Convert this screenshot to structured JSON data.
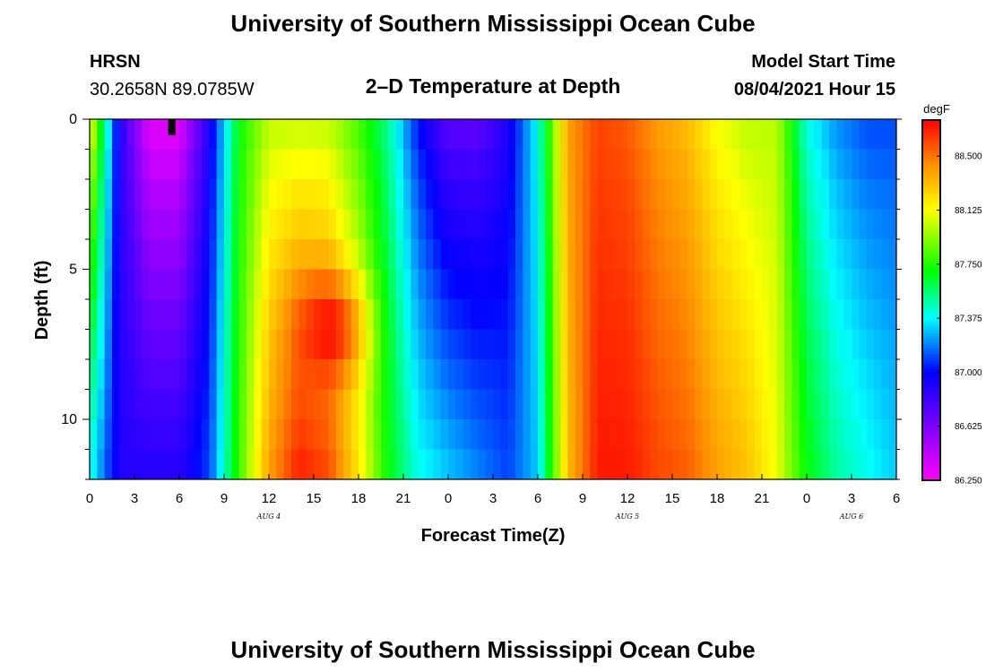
{
  "header": {
    "title": "University of Southern Mississippi Ocean Cube",
    "station": "HRSN",
    "coords": "30.2658N  89.0785W",
    "plot_title": "2–D Temperature at Depth",
    "model_start_label": "Model Start Time",
    "model_start_value": "08/04/2021 Hour 15",
    "footer_title": "University of Southern Mississippi Ocean Cube"
  },
  "chart_data": {
    "type": "heatmap",
    "title": "2–D Temperature at Depth",
    "xlabel": "Forecast Time(Z)",
    "ylabel": "Depth (ft)",
    "x_hours_range": [
      0,
      54
    ],
    "y_depth_range_ft": [
      0,
      12
    ],
    "x_tick_hours": [
      0,
      3,
      6,
      9,
      12,
      15,
      18,
      21,
      24,
      27,
      30,
      33,
      36,
      39,
      42,
      45,
      48,
      51,
      54
    ],
    "x_tick_labels": [
      "0",
      "3",
      "6",
      "9",
      "12",
      "15",
      "18",
      "21",
      "0",
      "3",
      "6",
      "9",
      "12",
      "15",
      "18",
      "21",
      "0",
      "3",
      "6"
    ],
    "y_major_ticks": [
      0,
      5,
      10
    ],
    "y_tick_labels": [
      "0",
      "5",
      "10"
    ],
    "date_labels": [
      {
        "hour": 12,
        "text": "AUG 4"
      },
      {
        "hour": 36,
        "text": "AUG 5"
      },
      {
        "hour": 51,
        "text": "AUG 6"
      }
    ],
    "colorbar": {
      "unit": "degF",
      "min": 86.25,
      "max": 88.75,
      "tick_values": [
        86.25,
        86.625,
        87.0,
        87.375,
        87.75,
        88.125,
        88.5
      ],
      "tick_labels": [
        "86.250",
        "86.625",
        "87.000",
        "87.375",
        "87.750",
        "88.125",
        "88.500"
      ]
    },
    "time_steps_hours": [
      0,
      2,
      4,
      6,
      8,
      10,
      12,
      14,
      16,
      18,
      20,
      22,
      24,
      26,
      28,
      30,
      32,
      34,
      36,
      38,
      40,
      42,
      44,
      46,
      48,
      50,
      52,
      54
    ],
    "surface_temp_degF": [
      88.2,
      86.9,
      86.3,
      86.3,
      86.9,
      87.7,
      88.0,
      88.0,
      88.0,
      87.8,
      87.5,
      87.0,
      86.7,
      86.7,
      86.9,
      87.4,
      88.4,
      88.6,
      88.55,
      88.4,
      88.3,
      88.1,
      88.0,
      88.0,
      87.4,
      87.2,
      87.1,
      87.1
    ],
    "bottom_temp_degF": [
      87.4,
      86.9,
      86.9,
      86.9,
      87.1,
      87.8,
      88.4,
      88.7,
      88.6,
      88.2,
      87.7,
      87.4,
      87.3,
      87.2,
      87.1,
      87.3,
      88.3,
      88.7,
      88.7,
      88.6,
      88.55,
      88.4,
      88.3,
      88.1,
      87.7,
      87.5,
      87.4,
      87.3
    ],
    "warm_core": {
      "hour": 16,
      "depth_ft": 7,
      "temp_degF": 88.75
    },
    "marker": {
      "hour": 5.5,
      "depth_ft": 0
    }
  }
}
